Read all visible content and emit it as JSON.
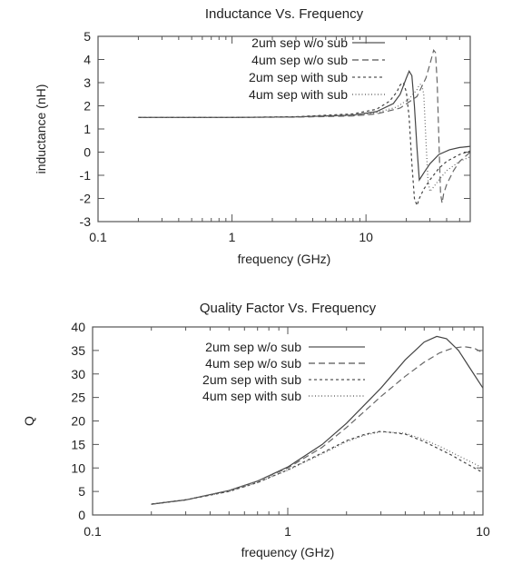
{
  "chart_data": [
    {
      "type": "line",
      "title": "Inductance Vs. Frequency",
      "xlabel": "frequency (GHz)",
      "ylabel": "inductance (nH)",
      "xscale": "log",
      "xlim": [
        0.1,
        60
      ],
      "ylim": [
        -3,
        5
      ],
      "xticks": [
        0.1,
        1,
        10
      ],
      "xtick_labels": [
        "0.1",
        "1",
        "10"
      ],
      "yticks": [
        -3,
        -2,
        -1,
        0,
        1,
        2,
        3,
        4,
        5
      ],
      "yticks_labels": [
        "-3",
        "-2",
        "-1",
        "0",
        "1",
        "2",
        "3",
        "4",
        "5"
      ],
      "legend_position": "top-center",
      "series": [
        {
          "name": "2um sep w/o sub",
          "dash": "",
          "x": [
            0.2,
            1,
            3,
            8,
            12,
            16,
            18,
            20,
            21,
            22,
            23,
            24,
            25,
            27,
            30,
            35,
            42,
            50,
            60
          ],
          "values": [
            1.5,
            1.5,
            1.52,
            1.6,
            1.75,
            2.1,
            2.5,
            3.2,
            3.5,
            3.3,
            2.0,
            0.2,
            -1.2,
            -0.9,
            -0.5,
            -0.1,
            0.1,
            0.2,
            0.25
          ]
        },
        {
          "name": "4um sep w/o sub",
          "dash": "7,4",
          "x": [
            0.2,
            1,
            3,
            8,
            12,
            18,
            24,
            28,
            30,
            32,
            33,
            34,
            35,
            36,
            37,
            38,
            40,
            45,
            50,
            60
          ],
          "values": [
            1.5,
            1.5,
            1.51,
            1.56,
            1.65,
            1.9,
            2.4,
            3.2,
            3.8,
            4.4,
            4.3,
            3.0,
            0.5,
            -1.8,
            -2.2,
            -1.8,
            -1.4,
            -0.8,
            -0.4,
            0.0
          ]
        },
        {
          "name": "2um sep with sub",
          "dash": "3,3",
          "x": [
            0.2,
            1,
            3,
            8,
            12,
            15,
            17,
            18,
            19,
            20,
            21,
            22,
            23,
            24,
            25,
            27,
            30,
            35,
            40,
            50,
            60
          ],
          "values": [
            1.5,
            1.5,
            1.53,
            1.65,
            1.85,
            2.2,
            2.6,
            2.9,
            3.0,
            2.6,
            1.5,
            -0.5,
            -2.0,
            -2.3,
            -2.0,
            -1.6,
            -1.2,
            -0.7,
            -0.4,
            -0.1,
            0.05
          ]
        },
        {
          "name": "4um sep with sub",
          "dash": "1,2.5",
          "x": [
            0.2,
            1,
            3,
            8,
            12,
            17,
            21,
            24,
            25,
            26,
            27,
            28,
            29,
            30,
            32,
            35,
            40,
            50,
            60
          ],
          "values": [
            1.5,
            1.5,
            1.52,
            1.58,
            1.7,
            1.95,
            2.3,
            2.7,
            2.9,
            2.95,
            2.5,
            0.5,
            -1.2,
            -1.7,
            -1.5,
            -1.2,
            -0.8,
            -0.4,
            -0.2
          ]
        }
      ]
    },
    {
      "type": "line",
      "title": "Quality Factor Vs. Frequency",
      "xlabel": "frequency (GHz)",
      "ylabel": "Q",
      "xscale": "log",
      "xlim": [
        0.1,
        10
      ],
      "ylim": [
        0,
        40
      ],
      "xticks": [
        0.1,
        1,
        10
      ],
      "xtick_labels": [
        "0.1",
        "1",
        "10"
      ],
      "yticks": [
        0,
        5,
        10,
        15,
        20,
        25,
        30,
        35,
        40
      ],
      "yticks_labels": [
        "0",
        "5",
        "10",
        "15",
        "20",
        "25",
        "30",
        "35",
        "40"
      ],
      "legend_position": "top-right",
      "series": [
        {
          "name": "2um sep w/o sub",
          "dash": "",
          "x": [
            0.2,
            0.3,
            0.5,
            0.7,
            1,
            1.5,
            2,
            3,
            4,
            5,
            5.8,
            6.5,
            7.5,
            8.5,
            10
          ],
          "values": [
            2.3,
            3.2,
            5.2,
            7.2,
            10.2,
            15.0,
            19.5,
            27.0,
            33.0,
            36.8,
            38.0,
            37.5,
            35.0,
            31.5,
            27.0
          ]
        },
        {
          "name": "4um sep w/o sub",
          "dash": "7,4",
          "x": [
            0.2,
            0.3,
            0.5,
            0.7,
            1,
            1.5,
            2,
            3,
            4,
            5,
            6,
            7,
            8,
            9,
            10
          ],
          "values": [
            2.3,
            3.2,
            5.2,
            7.2,
            10.0,
            14.4,
            18.6,
            25.2,
            29.5,
            32.5,
            34.5,
            35.5,
            35.8,
            35.5,
            34.5
          ]
        },
        {
          "name": "2um sep with sub",
          "dash": "3,3",
          "x": [
            0.2,
            0.3,
            0.5,
            0.7,
            1,
            1.5,
            2,
            2.5,
            3,
            4,
            5,
            6,
            7,
            8,
            10
          ],
          "values": [
            2.3,
            3.2,
            5.0,
            6.9,
            9.6,
            13.2,
            15.8,
            17.2,
            17.8,
            17.2,
            15.6,
            14.0,
            12.6,
            11.2,
            9.0
          ]
        },
        {
          "name": "4um sep with sub",
          "dash": "1,2.5",
          "x": [
            0.2,
            0.3,
            0.5,
            0.7,
            1,
            1.5,
            2,
            2.5,
            3,
            4,
            5,
            6,
            7,
            8,
            10
          ],
          "values": [
            2.3,
            3.2,
            5.0,
            6.9,
            9.5,
            13.0,
            15.6,
            17.0,
            17.7,
            17.4,
            16.0,
            14.6,
            13.2,
            12.0,
            10.0
          ]
        }
      ]
    }
  ]
}
